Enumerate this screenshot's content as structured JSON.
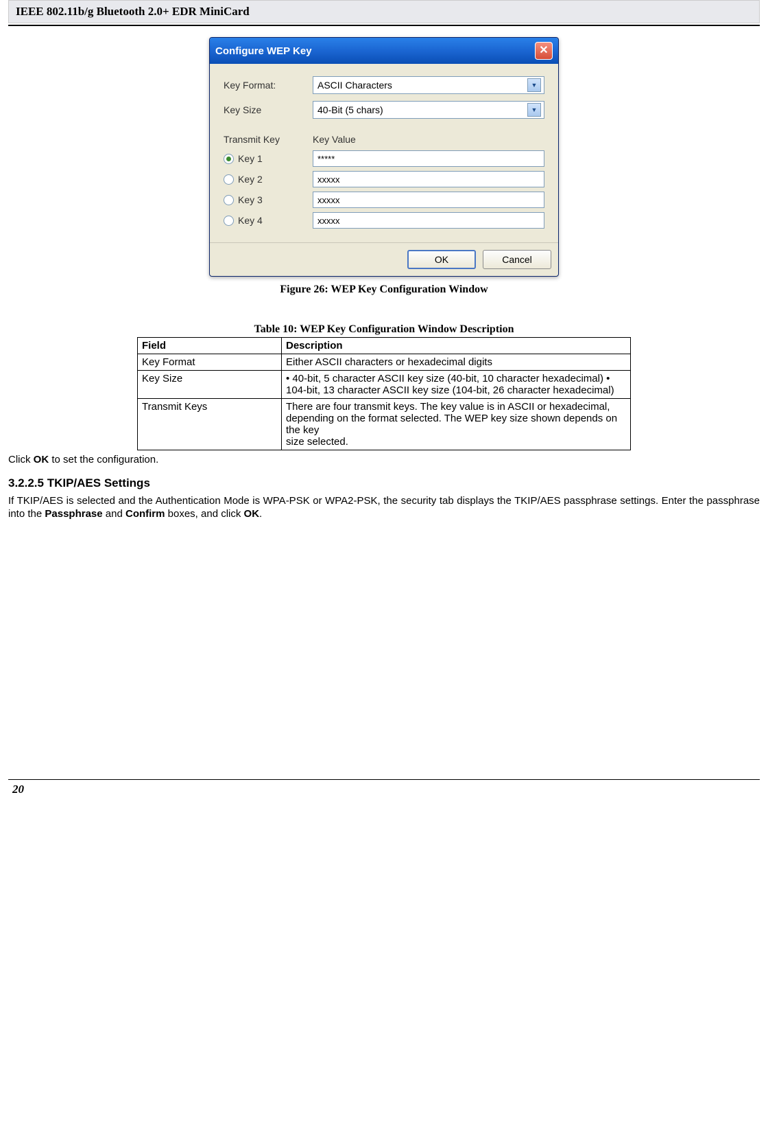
{
  "header": {
    "title": "IEEE 802.11b/g Bluetooth 2.0+ EDR MiniCard"
  },
  "page_number": "20",
  "dialog": {
    "title": "Configure WEP Key",
    "key_format": {
      "label": "Key Format:",
      "value": "ASCII Characters"
    },
    "key_size": {
      "label": "Key Size",
      "value": "40-Bit (5 chars)"
    },
    "transmit_key_label": "Transmit Key",
    "key_value_label": "Key Value",
    "keys": [
      {
        "label": "Key 1",
        "selected": true,
        "value": "*****"
      },
      {
        "label": "Key 2",
        "selected": false,
        "value": "xxxxx"
      },
      {
        "label": "Key 3",
        "selected": false,
        "value": "xxxxx"
      },
      {
        "label": "Key 4",
        "selected": false,
        "value": "xxxxx"
      }
    ],
    "buttons": {
      "ok": "OK",
      "cancel": "Cancel"
    }
  },
  "figure_caption": "Figure 26: WEP Key Configuration Window",
  "table_caption": "Table 10: WEP Key Configuration Window Description",
  "table": {
    "columns": [
      "Field",
      "Description"
    ],
    "rows": [
      {
        "field": "Key Format",
        "desc": "Either ASCII characters or hexadecimal digits"
      },
      {
        "field": "Key Size",
        "desc": "• 40-bit, 5 character ASCII key size (40-bit, 10 character hexadecimal) • 104-bit, 13 character ASCII key size (104-bit, 26 character hexadecimal)"
      },
      {
        "field": "Transmit Keys",
        "desc": "There are four transmit keys. The key value is in ASCII or hexadecimal,\ndepending on the format selected. The WEP key size shown depends on the key\nsize selected."
      }
    ]
  },
  "body": {
    "click_ok_pre": "Click ",
    "click_ok_bold": "OK",
    "click_ok_post": " to set the configuration.",
    "tkip_title": "3.2.2.5 TKIP/AES Settings",
    "tkip_p1_a": "If TKIP/AES is selected and the Authentication Mode is WPA-PSK or WPA2-PSK, the security tab displays the TKIP/AES passphrase settings. Enter the passphrase into the ",
    "tkip_p1_b1": "Passphrase",
    "tkip_p1_mid": " and ",
    "tkip_p1_b2": "Confirm",
    "tkip_p1_c": " boxes, and click ",
    "tkip_p1_b3": "OK",
    "tkip_p1_end": "."
  }
}
